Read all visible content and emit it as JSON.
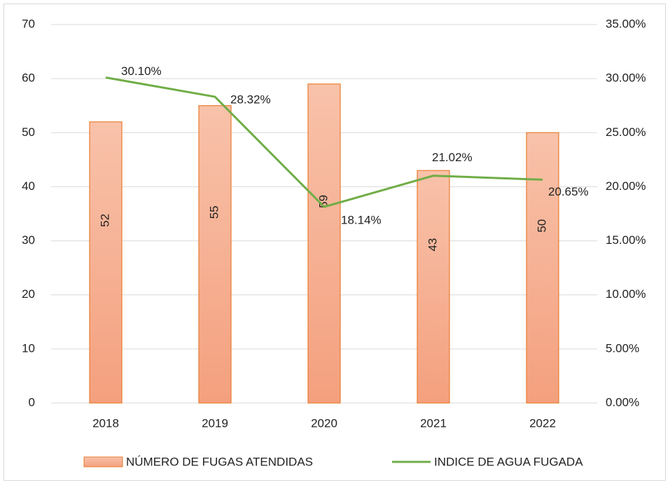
{
  "chart_data": {
    "type": "bar",
    "categories": [
      "2018",
      "2019",
      "2020",
      "2021",
      "2022"
    ],
    "series": [
      {
        "name": "NÚMERO DE FUGAS ATENDIDAS",
        "type": "bar",
        "color": "#f6ab8c",
        "values": [
          52,
          55,
          59,
          43,
          50
        ]
      },
      {
        "name": "INDICE DE AGUA FUGADA",
        "type": "line",
        "axis": "y2",
        "color": "#70ad47",
        "values": [
          30.1,
          28.32,
          18.14,
          21.02,
          20.65
        ],
        "value_labels": [
          "30.10%",
          "28.32%",
          "18.14%",
          "21.02%",
          "20.65%"
        ]
      }
    ],
    "ylim": [
      0,
      70
    ],
    "yticks": [
      0,
      10,
      20,
      30,
      40,
      50,
      60,
      70
    ],
    "y2lim": [
      0,
      35
    ],
    "y2ticks": [
      {
        "value": 0,
        "label": "0.00%"
      },
      {
        "value": 5,
        "label": "5.00%"
      },
      {
        "value": 10,
        "label": "10.00%"
      },
      {
        "value": 15,
        "label": "15.00%"
      },
      {
        "value": 20,
        "label": "20.00%"
      },
      {
        "value": 25,
        "label": "25.00%"
      },
      {
        "value": 30,
        "label": "30.00%"
      },
      {
        "value": 35,
        "label": "35.00%"
      }
    ],
    "grid": true,
    "legend": "bottom"
  }
}
